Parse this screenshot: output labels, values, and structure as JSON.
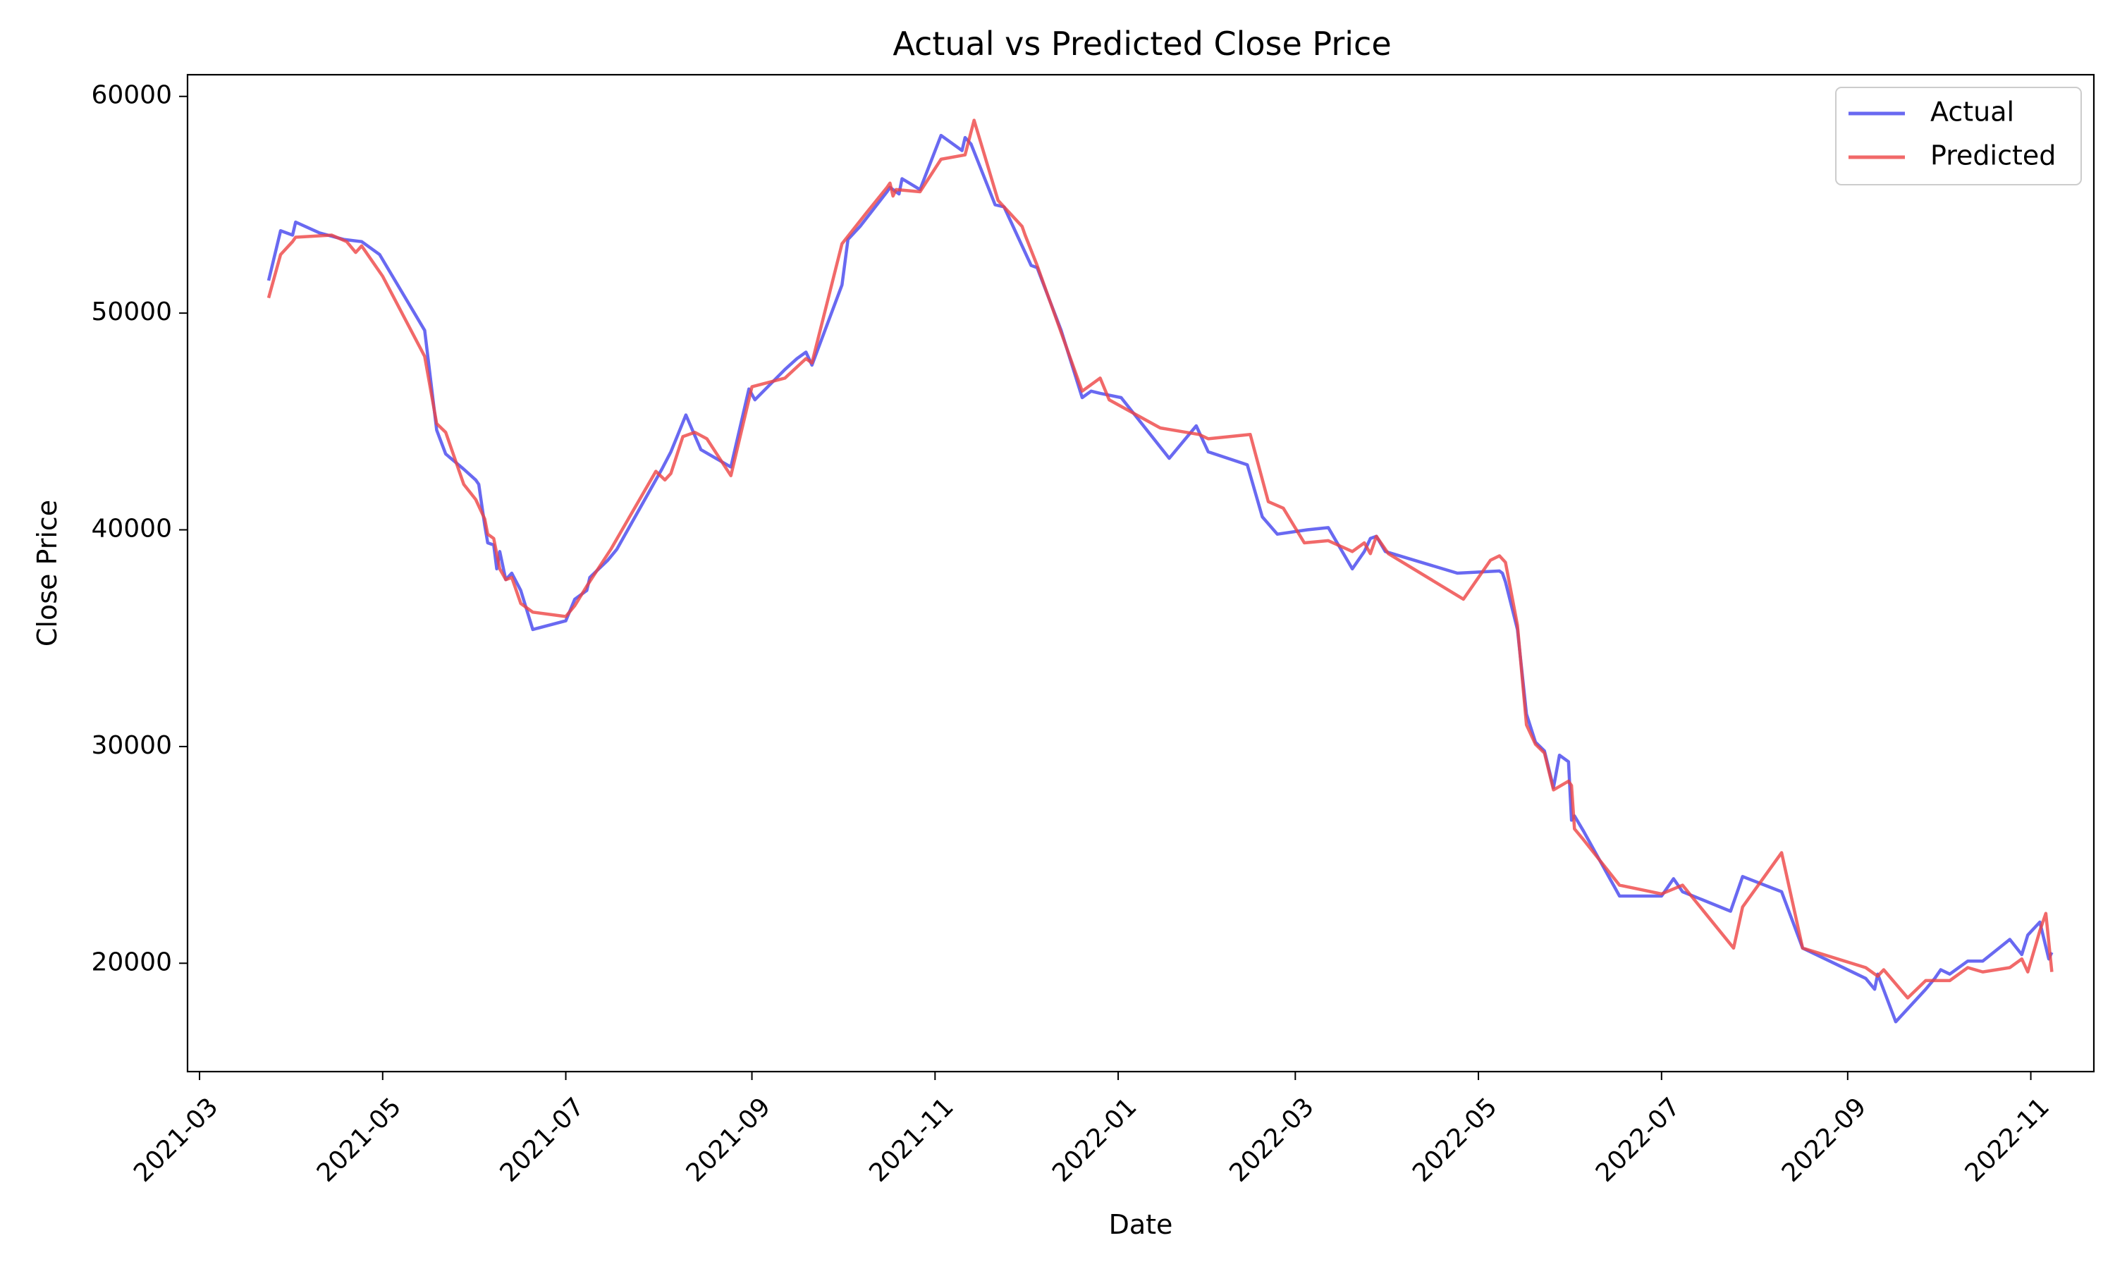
{
  "chart_data": {
    "type": "line",
    "title": "Actual vs Predicted Close Price",
    "xlabel": "Date",
    "ylabel": "Close Price",
    "x_ticks": [
      "2021-03-01",
      "2021-05-01",
      "2021-07-01",
      "2021-09-01",
      "2021-11-01",
      "2022-01-01",
      "2022-03-01",
      "2022-05-01",
      "2022-07-01",
      "2022-09-01",
      "2022-11-01"
    ],
    "x_tick_labels": [
      "2021-03",
      "2021-05",
      "2021-07",
      "2021-09",
      "2021-11",
      "2022-01",
      "2022-03",
      "2022-05",
      "2022-07",
      "2022-09",
      "2022-11"
    ],
    "xlim": [
      "2021-02-25",
      "2022-11-22"
    ],
    "ylim": [
      15000,
      61000
    ],
    "y_ticks": [
      20000,
      30000,
      40000,
      50000,
      60000
    ],
    "y_tick_labels": [
      "20000",
      "30000",
      "40000",
      "50000",
      "60000"
    ],
    "grid": false,
    "legend_position": "upper right",
    "series": [
      {
        "name": "Actual",
        "color": "#4444ee",
        "points": [
          [
            "2021-03-24",
            51500
          ],
          [
            "2021-03-28",
            53800
          ],
          [
            "2021-04-01",
            53600
          ],
          [
            "2021-04-02",
            54200
          ],
          [
            "2021-04-10",
            53700
          ],
          [
            "2021-04-18",
            53400
          ],
          [
            "2021-04-24",
            53300
          ],
          [
            "2021-04-30",
            52700
          ],
          [
            "2021-05-15",
            49200
          ],
          [
            "2021-05-19",
            44600
          ],
          [
            "2021-05-22",
            43500
          ],
          [
            "2021-05-28",
            42800
          ],
          [
            "2021-06-01",
            42300
          ],
          [
            "2021-06-02",
            42100
          ],
          [
            "2021-06-04",
            40200
          ],
          [
            "2021-06-05",
            39400
          ],
          [
            "2021-06-07",
            39300
          ],
          [
            "2021-06-08",
            38200
          ],
          [
            "2021-06-09",
            39000
          ],
          [
            "2021-06-11",
            37700
          ],
          [
            "2021-06-13",
            38000
          ],
          [
            "2021-06-16",
            37200
          ],
          [
            "2021-06-20",
            35400
          ],
          [
            "2021-07-01",
            35800
          ],
          [
            "2021-07-04",
            36800
          ],
          [
            "2021-07-08",
            37200
          ],
          [
            "2021-07-09",
            37800
          ],
          [
            "2021-07-15",
            38600
          ],
          [
            "2021-07-18",
            39100
          ],
          [
            "2021-08-02",
            42800
          ],
          [
            "2021-08-05",
            43600
          ],
          [
            "2021-08-10",
            45300
          ],
          [
            "2021-08-15",
            43700
          ],
          [
            "2021-08-25",
            42900
          ],
          [
            "2021-08-31",
            46500
          ],
          [
            "2021-09-02",
            46000
          ],
          [
            "2021-09-12",
            47400
          ],
          [
            "2021-09-16",
            47900
          ],
          [
            "2021-09-19",
            48200
          ],
          [
            "2021-09-21",
            47600
          ],
          [
            "2021-10-01",
            51300
          ],
          [
            "2021-10-03",
            53400
          ],
          [
            "2021-10-07",
            54000
          ],
          [
            "2021-10-16",
            55600
          ],
          [
            "2021-10-17",
            55800
          ],
          [
            "2021-10-20",
            55500
          ],
          [
            "2021-10-21",
            56200
          ],
          [
            "2021-10-27",
            55700
          ],
          [
            "2021-11-03",
            58200
          ],
          [
            "2021-11-10",
            57500
          ],
          [
            "2021-11-11",
            58100
          ],
          [
            "2021-11-13",
            57800
          ],
          [
            "2021-11-21",
            55000
          ],
          [
            "2021-11-24",
            54900
          ],
          [
            "2021-12-03",
            52200
          ],
          [
            "2021-12-05",
            52100
          ],
          [
            "2021-12-13",
            49200
          ],
          [
            "2021-12-20",
            46100
          ],
          [
            "2021-12-23",
            46400
          ],
          [
            "2021-12-26",
            46300
          ],
          [
            "2022-01-02",
            46100
          ],
          [
            "2022-01-18",
            43300
          ],
          [
            "2022-01-27",
            44800
          ],
          [
            "2022-01-31",
            43600
          ],
          [
            "2022-02-13",
            43000
          ],
          [
            "2022-02-18",
            40600
          ],
          [
            "2022-02-23",
            39800
          ],
          [
            "2022-03-05",
            40000
          ],
          [
            "2022-03-12",
            40100
          ],
          [
            "2022-03-20",
            38200
          ],
          [
            "2022-03-24",
            39000
          ],
          [
            "2022-03-26",
            39600
          ],
          [
            "2022-03-28",
            39700
          ],
          [
            "2022-03-31",
            39000
          ],
          [
            "2022-04-24",
            38000
          ],
          [
            "2022-05-08",
            38100
          ],
          [
            "2022-05-09",
            38000
          ],
          [
            "2022-05-10",
            37600
          ],
          [
            "2022-05-14",
            35400
          ],
          [
            "2022-05-17",
            31500
          ],
          [
            "2022-05-20",
            30200
          ],
          [
            "2022-05-23",
            29800
          ],
          [
            "2022-05-26",
            28100
          ],
          [
            "2022-05-28",
            29600
          ],
          [
            "2022-05-31",
            29300
          ],
          [
            "2022-06-01",
            26600
          ],
          [
            "2022-06-02",
            26800
          ],
          [
            "2022-06-05",
            26100
          ],
          [
            "2022-06-17",
            23100
          ],
          [
            "2022-07-01",
            23100
          ],
          [
            "2022-07-05",
            23900
          ],
          [
            "2022-07-08",
            23300
          ],
          [
            "2022-07-24",
            22400
          ],
          [
            "2022-07-28",
            24000
          ],
          [
            "2022-08-10",
            23300
          ],
          [
            "2022-08-17",
            20700
          ],
          [
            "2022-09-07",
            19300
          ],
          [
            "2022-09-10",
            18800
          ],
          [
            "2022-09-11",
            19500
          ],
          [
            "2022-09-17",
            17300
          ],
          [
            "2022-09-27",
            18800
          ],
          [
            "2022-09-30",
            19300
          ],
          [
            "2022-10-02",
            19700
          ],
          [
            "2022-10-05",
            19500
          ],
          [
            "2022-10-11",
            20100
          ],
          [
            "2022-10-16",
            20100
          ],
          [
            "2022-10-25",
            21100
          ],
          [
            "2022-10-29",
            20400
          ],
          [
            "2022-10-31",
            21300
          ],
          [
            "2022-11-04",
            21900
          ],
          [
            "2022-11-07",
            20200
          ],
          [
            "2022-11-08",
            20500
          ]
        ]
      },
      {
        "name": "Predicted",
        "color": "#ee4444",
        "points": [
          [
            "2021-03-24",
            50700
          ],
          [
            "2021-03-28",
            52700
          ],
          [
            "2021-04-01",
            53300
          ],
          [
            "2021-04-02",
            53500
          ],
          [
            "2021-04-14",
            53600
          ],
          [
            "2021-04-19",
            53300
          ],
          [
            "2021-04-22",
            52800
          ],
          [
            "2021-04-24",
            53100
          ],
          [
            "2021-05-01",
            51700
          ],
          [
            "2021-05-15",
            48000
          ],
          [
            "2021-05-19",
            44900
          ],
          [
            "2021-05-22",
            44500
          ],
          [
            "2021-05-28",
            42100
          ],
          [
            "2021-06-01",
            41400
          ],
          [
            "2021-06-04",
            40500
          ],
          [
            "2021-06-05",
            39800
          ],
          [
            "2021-06-07",
            39600
          ],
          [
            "2021-06-09",
            38200
          ],
          [
            "2021-06-11",
            37700
          ],
          [
            "2021-06-13",
            37800
          ],
          [
            "2021-06-16",
            36600
          ],
          [
            "2021-06-20",
            36200
          ],
          [
            "2021-07-01",
            36000
          ],
          [
            "2021-07-04",
            36500
          ],
          [
            "2021-07-08",
            37400
          ],
          [
            "2021-07-16",
            39100
          ],
          [
            "2021-07-31",
            42700
          ],
          [
            "2021-08-03",
            42300
          ],
          [
            "2021-08-05",
            42600
          ],
          [
            "2021-08-09",
            44300
          ],
          [
            "2021-08-13",
            44500
          ],
          [
            "2021-08-17",
            44200
          ],
          [
            "2021-08-25",
            42500
          ],
          [
            "2021-09-01",
            46600
          ],
          [
            "2021-09-12",
            47000
          ],
          [
            "2021-09-19",
            47900
          ],
          [
            "2021-09-21",
            47700
          ],
          [
            "2021-10-01",
            53200
          ],
          [
            "2021-10-09",
            54600
          ],
          [
            "2021-10-16",
            55800
          ],
          [
            "2021-10-17",
            56000
          ],
          [
            "2021-10-18",
            55400
          ],
          [
            "2021-10-19",
            55700
          ],
          [
            "2021-10-27",
            55600
          ],
          [
            "2021-11-03",
            57100
          ],
          [
            "2021-11-11",
            57300
          ],
          [
            "2021-11-14",
            58900
          ],
          [
            "2021-11-22",
            55200
          ],
          [
            "2021-11-30",
            54000
          ],
          [
            "2021-12-01",
            53600
          ],
          [
            "2021-12-05",
            52200
          ],
          [
            "2021-12-20",
            46400
          ],
          [
            "2021-12-26",
            47000
          ],
          [
            "2021-12-29",
            46000
          ],
          [
            "2022-01-15",
            44700
          ],
          [
            "2022-01-28",
            44400
          ],
          [
            "2022-01-31",
            44200
          ],
          [
            "2022-02-14",
            44400
          ],
          [
            "2022-02-20",
            41300
          ],
          [
            "2022-02-25",
            41000
          ],
          [
            "2022-03-04",
            39400
          ],
          [
            "2022-03-12",
            39500
          ],
          [
            "2022-03-20",
            39000
          ],
          [
            "2022-03-24",
            39400
          ],
          [
            "2022-03-26",
            38900
          ],
          [
            "2022-03-28",
            39700
          ],
          [
            "2022-04-01",
            38900
          ],
          [
            "2022-04-26",
            36800
          ],
          [
            "2022-05-05",
            38600
          ],
          [
            "2022-05-08",
            38800
          ],
          [
            "2022-05-10",
            38500
          ],
          [
            "2022-05-14",
            35600
          ],
          [
            "2022-05-17",
            31000
          ],
          [
            "2022-05-20",
            30100
          ],
          [
            "2022-05-23",
            29700
          ],
          [
            "2022-05-26",
            28000
          ],
          [
            "2022-05-31",
            28400
          ],
          [
            "2022-06-01",
            28200
          ],
          [
            "2022-06-02",
            26200
          ],
          [
            "2022-06-05",
            25700
          ],
          [
            "2022-06-17",
            23600
          ],
          [
            "2022-07-01",
            23200
          ],
          [
            "2022-07-08",
            23600
          ],
          [
            "2022-07-25",
            20700
          ],
          [
            "2022-07-28",
            22600
          ],
          [
            "2022-08-10",
            25100
          ],
          [
            "2022-08-17",
            20700
          ],
          [
            "2022-09-07",
            19800
          ],
          [
            "2022-09-11",
            19400
          ],
          [
            "2022-09-13",
            19700
          ],
          [
            "2022-09-21",
            18400
          ],
          [
            "2022-09-27",
            19200
          ],
          [
            "2022-10-05",
            19200
          ],
          [
            "2022-10-11",
            19800
          ],
          [
            "2022-10-16",
            19600
          ],
          [
            "2022-10-25",
            19800
          ],
          [
            "2022-10-29",
            20200
          ],
          [
            "2022-10-31",
            19600
          ],
          [
            "2022-11-04",
            21500
          ],
          [
            "2022-11-06",
            22300
          ],
          [
            "2022-11-08",
            19600
          ]
        ]
      }
    ]
  }
}
